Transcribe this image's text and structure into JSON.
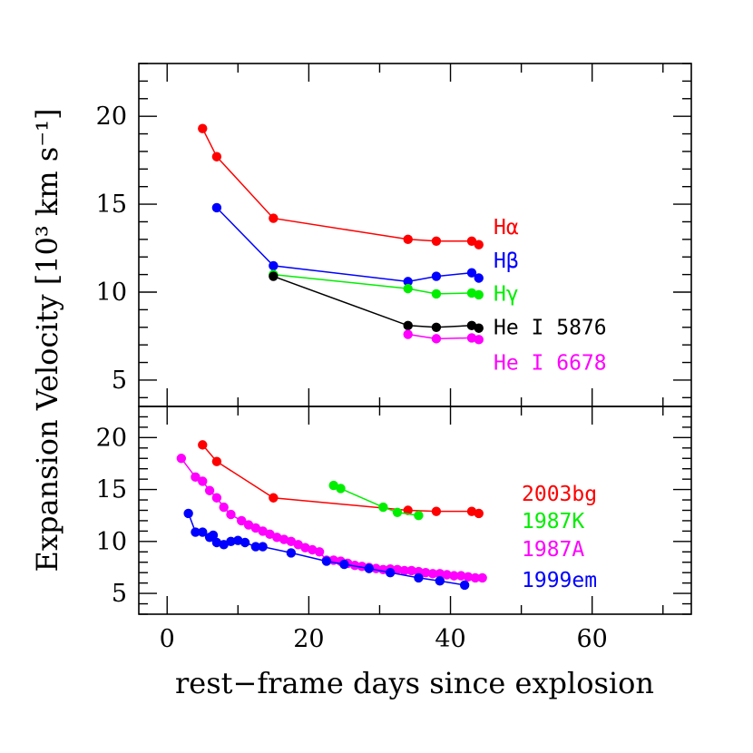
{
  "chart_data": [
    {
      "type": "line",
      "panel": "top",
      "xlabel": "rest−frame days since explosion",
      "ylabel": "Expansion Velocity [10³ km s⁻¹]",
      "xlim": [
        -4,
        74
      ],
      "ylim": [
        3.5,
        23
      ],
      "yticks": [
        5,
        10,
        15,
        20
      ],
      "series": [
        {
          "name": "Hα",
          "color": "#ff0000",
          "label_y": 13.3,
          "x": [
            5,
            7,
            15,
            34,
            38,
            43,
            44
          ],
          "y": [
            19.3,
            17.7,
            14.2,
            13.0,
            12.9,
            12.9,
            12.7
          ]
        },
        {
          "name": "Hβ",
          "color": "#0000ff",
          "label_y": 11.4,
          "x": [
            7,
            15,
            34,
            38,
            43,
            44
          ],
          "y": [
            14.8,
            11.5,
            10.6,
            10.9,
            11.1,
            10.8
          ]
        },
        {
          "name": "Hγ",
          "color": "#00ee00",
          "label_y": 9.5,
          "x": [
            15,
            34,
            38,
            43,
            44
          ],
          "y": [
            11.0,
            10.2,
            9.9,
            9.95,
            9.85
          ]
        },
        {
          "name": "He I 5876",
          "color": "#000000",
          "label_y": 7.6,
          "x": [
            15,
            34,
            38,
            43,
            44
          ],
          "y": [
            10.9,
            8.1,
            8.0,
            8.1,
            7.95
          ]
        },
        {
          "name": "He I 6678",
          "color": "#ff00ff",
          "label_y": 5.6,
          "x": [
            34,
            38,
            43,
            44
          ],
          "y": [
            7.6,
            7.35,
            7.4,
            7.3
          ]
        }
      ]
    },
    {
      "type": "line",
      "panel": "bottom",
      "xlabel": "rest−frame days since explosion",
      "ylabel": "Expansion Velocity [10³ km s⁻¹]",
      "xlim": [
        -4,
        74
      ],
      "ylim": [
        3,
        23
      ],
      "yticks": [
        5,
        10,
        15,
        20
      ],
      "xticks": [
        0,
        20,
        40,
        60
      ],
      "series": [
        {
          "name": "2003bg",
          "color": "#ff0000",
          "label_y": 13.9,
          "x": [
            5,
            7,
            15,
            34,
            38,
            43,
            44
          ],
          "y": [
            19.3,
            17.7,
            14.2,
            13.0,
            12.9,
            12.9,
            12.7
          ]
        },
        {
          "name": "1987K",
          "color": "#00ee00",
          "label_y": 11.3,
          "x": [
            23.5,
            24.5,
            30.5,
            32.5,
            35.5
          ],
          "y": [
            15.4,
            15.1,
            13.3,
            12.8,
            12.5
          ]
        },
        {
          "name": "1987A",
          "color": "#ff00ff",
          "label_y": 8.6,
          "x": [
            2,
            4,
            5,
            6,
            7,
            8,
            9,
            10.5,
            11.5,
            12.5,
            13.5,
            14.5,
            15.5,
            16.5,
            17.5,
            18.5,
            19.5,
            20.5,
            21.5,
            22.5,
            23.5,
            24.5,
            25.5,
            26.5,
            27.5,
            28.5,
            29.5,
            30.5,
            31.5,
            32.5,
            33.5,
            34.5,
            35.5,
            36.5,
            37.5,
            38.5,
            39.5,
            40.5,
            41.5,
            42.5,
            43.5,
            44.5
          ],
          "y": [
            18.0,
            16.2,
            15.8,
            14.9,
            14.2,
            13.3,
            12.6,
            12.0,
            11.6,
            11.3,
            11.0,
            10.7,
            10.4,
            10.2,
            10.0,
            9.7,
            9.4,
            9.2,
            9.0,
            8.2,
            8.2,
            8.1,
            7.9,
            7.7,
            7.6,
            7.5,
            7.4,
            7.3,
            7.35,
            7.3,
            7.2,
            7.2,
            7.1,
            7.0,
            6.9,
            6.9,
            6.8,
            6.7,
            6.7,
            6.6,
            6.5,
            6.5
          ]
        },
        {
          "name": "1999em",
          "color": "#0000ff",
          "label_y": 5.6,
          "x": [
            3,
            4,
            5,
            6,
            6.5,
            7,
            8,
            9,
            10,
            11,
            12.5,
            13.5,
            17.5,
            22.5,
            25,
            28.5,
            31.5,
            35.5,
            38.5,
            42
          ],
          "y": [
            12.7,
            10.9,
            10.9,
            10.4,
            10.6,
            9.9,
            9.7,
            10.0,
            10.1,
            9.9,
            9.5,
            9.5,
            8.9,
            8.1,
            7.8,
            7.4,
            7.0,
            6.5,
            6.2,
            5.8
          ]
        }
      ]
    }
  ]
}
